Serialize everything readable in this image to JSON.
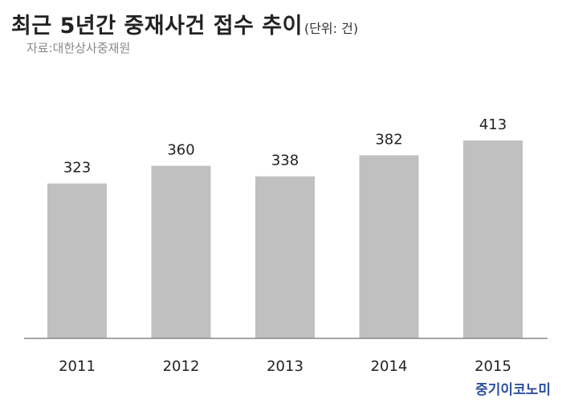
{
  "header": {
    "title": "최근 5년간 중재사건 접수 추이",
    "unit": "(단위: 건)",
    "source": "자료:대한상사중재원"
  },
  "footer": {
    "brand": "중기이코노미"
  },
  "colors": {
    "bar": "#c0c0c0",
    "axis": "#888888",
    "text": "#222222",
    "brand": "#2d4f9e"
  },
  "chart_data": {
    "type": "bar",
    "title": "최근 5년간 중재사건 접수 추이",
    "categories": [
      "2011",
      "2012",
      "2013",
      "2014",
      "2015"
    ],
    "values": [
      323,
      360,
      338,
      382,
      413
    ],
    "ylim": [
      0,
      413
    ],
    "grid": false,
    "data_labels": true
  }
}
